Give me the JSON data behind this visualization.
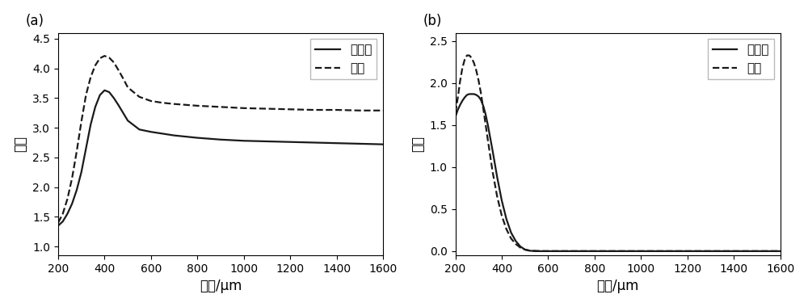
{
  "panel_a": {
    "label": "(a)",
    "ylabel": "实部",
    "xlabel": "波长/μm",
    "xlim": [
      200,
      1600
    ],
    "ylim": [
      0.85,
      4.6
    ],
    "yticks": [
      1.0,
      1.5,
      2.0,
      2.5,
      3.0,
      3.5,
      4.0,
      4.5
    ],
    "xticks": [
      200,
      400,
      600,
      800,
      1000,
      1200,
      1400,
      1600
    ],
    "legend": [
      "非晶态",
      "晶态"
    ],
    "amorphous": {
      "x": [
        200,
        220,
        240,
        260,
        280,
        300,
        320,
        340,
        360,
        380,
        400,
        420,
        440,
        460,
        480,
        500,
        550,
        600,
        650,
        700,
        800,
        900,
        1000,
        1100,
        1200,
        1300,
        1400,
        1500,
        1600
      ],
      "y": [
        1.35,
        1.42,
        1.55,
        1.72,
        1.95,
        2.25,
        2.65,
        3.05,
        3.35,
        3.55,
        3.63,
        3.6,
        3.5,
        3.38,
        3.25,
        3.12,
        2.97,
        2.93,
        2.9,
        2.87,
        2.83,
        2.8,
        2.78,
        2.77,
        2.76,
        2.75,
        2.74,
        2.73,
        2.72
      ]
    },
    "crystalline": {
      "x": [
        200,
        220,
        240,
        260,
        280,
        300,
        320,
        340,
        360,
        380,
        400,
        420,
        440,
        460,
        480,
        500,
        550,
        600,
        650,
        700,
        800,
        900,
        1000,
        1100,
        1200,
        1300,
        1400,
        1500,
        1600
      ],
      "y": [
        1.4,
        1.55,
        1.8,
        2.15,
        2.6,
        3.1,
        3.55,
        3.85,
        4.05,
        4.17,
        4.21,
        4.18,
        4.1,
        3.97,
        3.83,
        3.68,
        3.52,
        3.45,
        3.42,
        3.4,
        3.37,
        3.35,
        3.33,
        3.32,
        3.31,
        3.3,
        3.3,
        3.29,
        3.29
      ]
    }
  },
  "panel_b": {
    "label": "(b)",
    "ylabel": "虚部",
    "xlabel": "波长/μm",
    "xlim": [
      200,
      1600
    ],
    "ylim": [
      -0.05,
      2.6
    ],
    "yticks": [
      0.0,
      0.5,
      1.0,
      1.5,
      2.0,
      2.5
    ],
    "xticks": [
      200,
      400,
      600,
      800,
      1000,
      1200,
      1400,
      1600
    ],
    "legend": [
      "非晶态",
      "晶态"
    ],
    "amorphous": {
      "x": [
        200,
        210,
        220,
        230,
        240,
        250,
        260,
        270,
        280,
        290,
        300,
        310,
        320,
        330,
        340,
        360,
        380,
        400,
        420,
        440,
        460,
        480,
        500,
        520,
        540,
        560,
        600,
        700,
        1600
      ],
      "y": [
        1.6,
        1.68,
        1.74,
        1.79,
        1.83,
        1.86,
        1.87,
        1.87,
        1.87,
        1.86,
        1.84,
        1.8,
        1.73,
        1.63,
        1.5,
        1.2,
        0.88,
        0.6,
        0.38,
        0.22,
        0.12,
        0.055,
        0.018,
        0.005,
        0.001,
        0.0,
        0.0,
        0.0,
        0.0
      ]
    },
    "crystalline": {
      "x": [
        200,
        210,
        220,
        230,
        240,
        250,
        260,
        270,
        280,
        290,
        300,
        310,
        320,
        340,
        360,
        380,
        400,
        420,
        440,
        460,
        480,
        500,
        520,
        550,
        580,
        620,
        660,
        700,
        750,
        800,
        1600
      ],
      "y": [
        1.65,
        1.82,
        2.02,
        2.18,
        2.28,
        2.33,
        2.33,
        2.3,
        2.24,
        2.15,
        2.03,
        1.88,
        1.7,
        1.32,
        0.95,
        0.65,
        0.42,
        0.26,
        0.15,
        0.085,
        0.042,
        0.018,
        0.007,
        0.002,
        0.0,
        0.0,
        0.0,
        0.0,
        0.0,
        0.0,
        0.0
      ]
    }
  },
  "line_color": "#1a1a1a",
  "background_color": "#ffffff",
  "font_size": 11,
  "label_font_size": 12,
  "tick_font_size": 10
}
